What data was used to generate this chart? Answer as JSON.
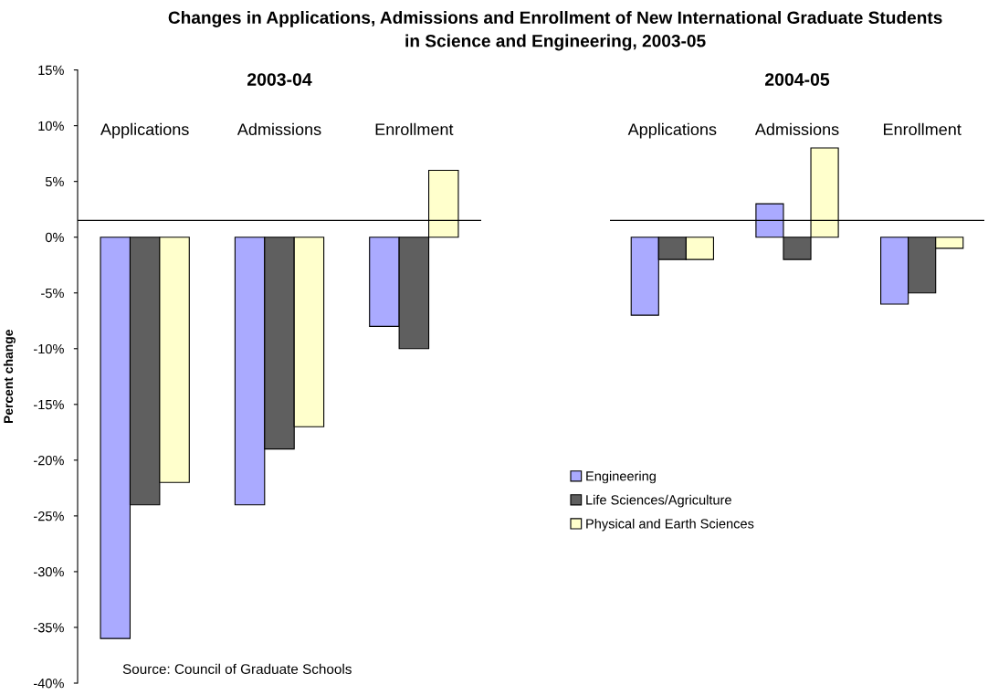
{
  "chart_data": [
    {
      "type": "bar",
      "title": "Changes in Applications, Admissions and Enrollment of New International Graduate Students\nin Science and Engineering, 2003-05",
      "subtitle": "2003-04",
      "ylabel": "Percent change",
      "categories": [
        "Applications",
        "Admissions",
        "Enrollment"
      ],
      "series": [
        {
          "name": "Engineering",
          "color": "#aaaaff",
          "values": [
            -36,
            -24,
            -8
          ]
        },
        {
          "name": "Life Sciences/Agriculture",
          "color": "#5f5f5f",
          "values": [
            -24,
            -19,
            -10
          ]
        },
        {
          "name": "Physical and Earth Sciences",
          "color": "#ffffcc",
          "values": [
            -22,
            -17,
            6
          ]
        }
      ],
      "ylim": [
        -40,
        15
      ],
      "yticks": [
        {
          "value": -40,
          "label": "-40%"
        },
        {
          "value": -35,
          "label": "-35%"
        },
        {
          "value": -30,
          "label": "-30%"
        },
        {
          "value": -25,
          "label": "-25%"
        },
        {
          "value": -20,
          "label": "-20%"
        },
        {
          "value": -15,
          "label": "-15%"
        },
        {
          "value": -10,
          "label": "-10%"
        },
        {
          "value": -5,
          "label": "-5%"
        },
        {
          "value": 0,
          "label": "0%"
        },
        {
          "value": 5,
          "label": "5%"
        },
        {
          "value": 10,
          "label": "10%"
        },
        {
          "value": 15,
          "label": "15%"
        }
      ],
      "ref_lines": [
        {
          "axis": "y",
          "value": 1.5,
          "color": "#000000"
        }
      ],
      "legend": "right",
      "annotations": [
        "Source: Council of Graduate Schools"
      ]
    },
    {
      "type": "bar",
      "subtitle": "2004-05",
      "categories": [
        "Applications",
        "Admissions",
        "Enrollment"
      ],
      "series": [
        {
          "color": "#aaaaff",
          "values": [
            -7,
            3,
            -6
          ]
        },
        {
          "color": "#5f5f5f",
          "values": [
            -2,
            -2,
            -5
          ]
        },
        {
          "color": "#ffffcc",
          "values": [
            -2,
            8,
            -1
          ]
        }
      ],
      "ylim": [
        -40,
        15
      ],
      "tick_labels": "x",
      "ref_lines": [
        {
          "axis": "y",
          "value": 1.5,
          "color": "#000000"
        }
      ]
    }
  ]
}
